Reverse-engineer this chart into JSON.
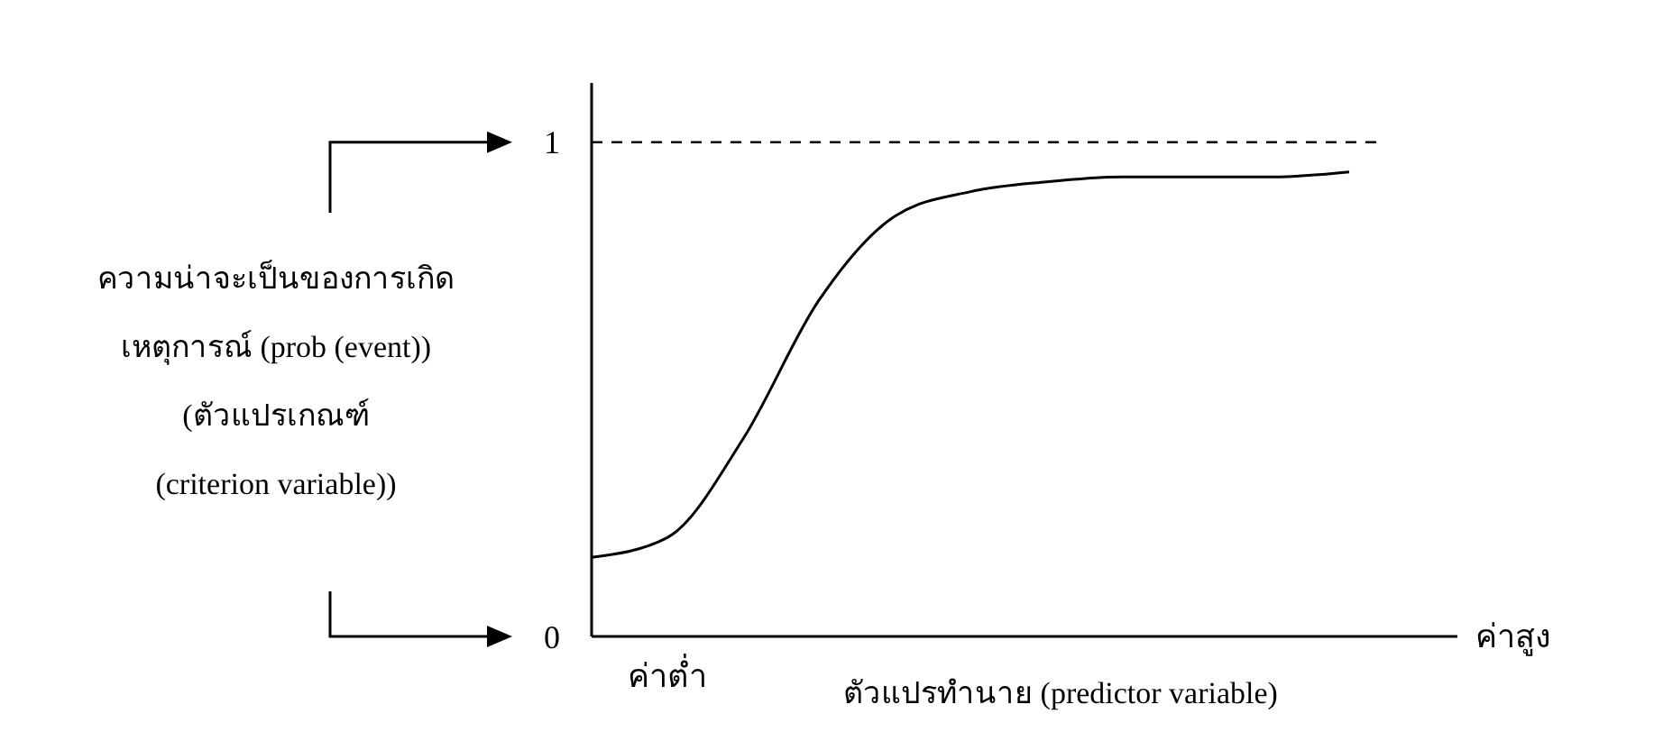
{
  "chart_data": {
    "type": "line",
    "ylabel": "ความน่าจะเป็นของการเกิด\nเหตุการณ์ (prob (event))\n(ตัวแปรเกณฑ์\n(criterion variable))",
    "xlabel": "ตัวแปรทำนาย (predictor variable)",
    "categories": [
      null,
      null,
      null,
      null,
      null,
      null,
      null,
      null,
      null,
      null,
      null
    ],
    "series": [
      {
        "color": "#000000",
        "values": [
          0.16,
          0.2,
          0.4,
          0.68,
          0.85,
          0.9,
          0.92,
          0.93,
          0.93,
          0.93,
          0.94
        ]
      }
    ],
    "ylim": [
      0,
      1.12
    ],
    "yticks": [
      0,
      1
    ],
    "ref_lines": [
      {
        "axis": "y",
        "value": 1,
        "line_style": "dashed"
      }
    ],
    "annotations": [
      "ค่าต่ำ",
      "ค่าสูง"
    ],
    "marker": "none",
    "line_style": "solid"
  }
}
